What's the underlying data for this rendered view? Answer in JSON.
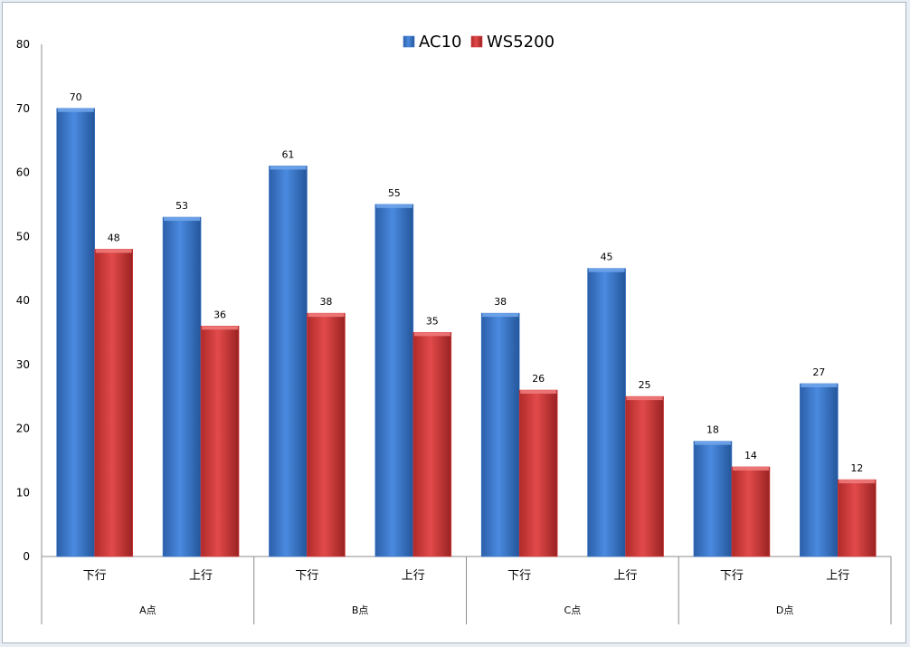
{
  "chart_data": {
    "type": "bar",
    "groups": [
      "A点",
      "B点",
      "C点",
      "D点"
    ],
    "categories": [
      "下行",
      "上行",
      "下行",
      "上行",
      "下行",
      "上行",
      "下行",
      "上行"
    ],
    "series": [
      {
        "name": "AC10",
        "color": "#3a78cc",
        "values": [
          70,
          53,
          61,
          55,
          38,
          45,
          18,
          27
        ]
      },
      {
        "name": "WS5200",
        "color": "#d93b3b",
        "values": [
          48,
          36,
          38,
          35,
          26,
          25,
          14,
          12
        ]
      }
    ],
    "y_ticks": [
      0,
      10,
      20,
      30,
      40,
      50,
      60,
      70,
      80
    ],
    "ylim": [
      0,
      80
    ],
    "legend": "top-center",
    "grid": false
  }
}
